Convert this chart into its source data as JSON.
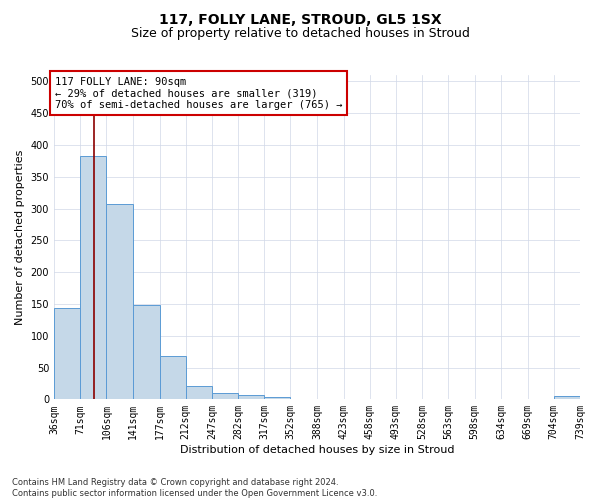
{
  "title": "117, FOLLY LANE, STROUD, GL5 1SX",
  "subtitle": "Size of property relative to detached houses in Stroud",
  "xlabel": "Distribution of detached houses by size in Stroud",
  "ylabel": "Number of detached properties",
  "footer_line1": "Contains HM Land Registry data © Crown copyright and database right 2024.",
  "footer_line2": "Contains public sector information licensed under the Open Government Licence v3.0.",
  "annotation_line1": "117 FOLLY LANE: 90sqm",
  "annotation_line2": "← 29% of detached houses are smaller (319)",
  "annotation_line3": "70% of semi-detached houses are larger (765) →",
  "bar_left_edges": [
    36,
    71,
    106,
    141,
    177,
    212,
    247,
    282,
    317,
    352,
    388,
    423,
    458,
    493,
    528,
    563,
    598,
    634,
    669,
    704
  ],
  "bar_widths": [
    35,
    35,
    35,
    36,
    35,
    35,
    35,
    35,
    35,
    36,
    35,
    35,
    35,
    35,
    35,
    35,
    36,
    35,
    35,
    35
  ],
  "bar_heights": [
    143,
    383,
    307,
    148,
    68,
    21,
    10,
    7,
    4,
    0,
    0,
    0,
    0,
    0,
    0,
    0,
    0,
    0,
    0,
    5
  ],
  "bar_color": "#c5d8e8",
  "bar_edge_color": "#5b9bd5",
  "tick_labels": [
    "36sqm",
    "71sqm",
    "106sqm",
    "141sqm",
    "177sqm",
    "212sqm",
    "247sqm",
    "282sqm",
    "317sqm",
    "352sqm",
    "388sqm",
    "423sqm",
    "458sqm",
    "493sqm",
    "528sqm",
    "563sqm",
    "598sqm",
    "634sqm",
    "669sqm",
    "704sqm",
    "739sqm"
  ],
  "ylim": [
    0,
    510
  ],
  "yticks": [
    0,
    50,
    100,
    150,
    200,
    250,
    300,
    350,
    400,
    450,
    500
  ],
  "property_line_x": 90,
  "property_line_color": "#8b0000",
  "bg_color": "#ffffff",
  "grid_color": "#d0d8e8",
  "annotation_box_color": "#ffffff",
  "annotation_box_edge_color": "#cc0000",
  "title_fontsize": 10,
  "subtitle_fontsize": 9,
  "label_fontsize": 8,
  "tick_fontsize": 7,
  "annotation_fontsize": 7.5,
  "footer_fontsize": 6
}
